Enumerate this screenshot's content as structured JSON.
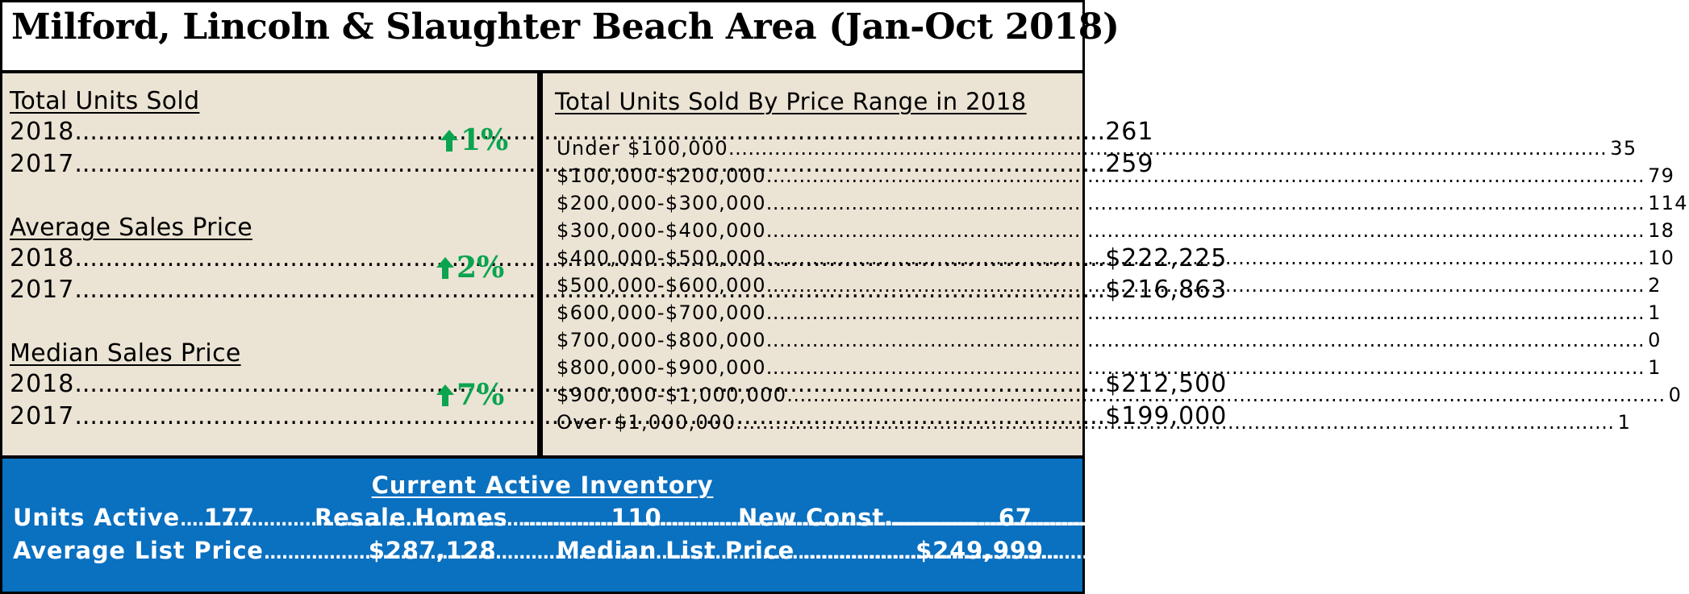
{
  "title": "Milford, Lincoln & Slaughter Beach Area (Jan-Oct 2018)",
  "colors": {
    "panel_bg": "#ebe3d4",
    "inventory_bg": "#0a70c0",
    "up_arrow": "#0aa44f"
  },
  "stats": [
    {
      "heading": "Total Units Sold",
      "change": "1%",
      "change_icon": "up-arrow-icon",
      "rows": [
        {
          "year": "2018",
          "value": "261"
        },
        {
          "year": "2017",
          "value": "259"
        }
      ]
    },
    {
      "heading": "Average Sales Price",
      "change": "2%",
      "change_icon": "up-arrow-icon",
      "rows": [
        {
          "year": "2018",
          "value": "$222,225"
        },
        {
          "year": "2017",
          "value": "$216,863"
        }
      ]
    },
    {
      "heading": "Median Sales Price",
      "change": "7%",
      "change_icon": "up-arrow-icon",
      "rows": [
        {
          "year": "2018",
          "value": "$212,500"
        },
        {
          "year": "2017",
          "value": "$199,000"
        }
      ]
    }
  ],
  "price_range": {
    "heading": "Total Units Sold By Price Range in 2018",
    "rows": [
      {
        "range": "Under $100,000",
        "count": "35"
      },
      {
        "range": "$100,000-$200,000",
        "count": "79"
      },
      {
        "range": "$200,000-$300,000",
        "count": "114"
      },
      {
        "range": "$300,000-$400,000",
        "count": "18"
      },
      {
        "range": "$400,000-$500,000",
        "count": "10"
      },
      {
        "range": "$500,000-$600,000",
        "count": "2"
      },
      {
        "range": "$600,000-$700,000",
        "count": "1"
      },
      {
        "range": "$700,000-$800,000",
        "count": "0"
      },
      {
        "range": "$800,000-$900,000",
        "count": "1"
      },
      {
        "range": "$900,000-$1,000,000",
        "count": "0"
      },
      {
        "range": "Over $1,000,000",
        "count": "1"
      }
    ]
  },
  "inventory": {
    "heading": "Current Active Inventory",
    "units_active": {
      "label": "Units Active",
      "value": "177"
    },
    "resale_homes": {
      "label": "Resale Homes",
      "value": "110"
    },
    "new_const": {
      "label": "New Const.",
      "value": "67"
    },
    "avg_list_price": {
      "label": "Average List Price",
      "value": "$287,128"
    },
    "median_list_price": {
      "label": "Median List Price",
      "value": "$249,999"
    }
  }
}
